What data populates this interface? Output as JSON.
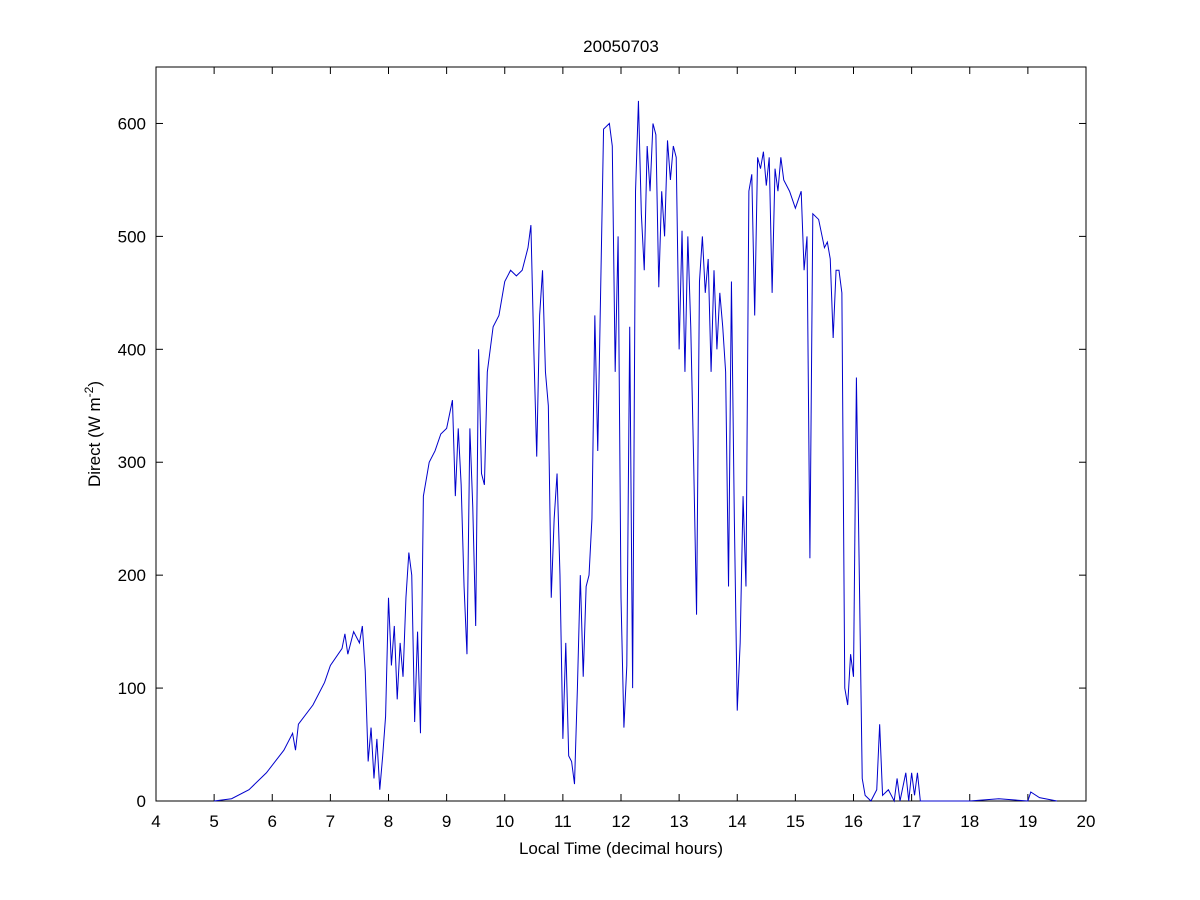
{
  "chart_data": {
    "type": "line",
    "title": "20050703",
    "xlabel": "Local Time (decimal hours)",
    "ylabel": {
      "text": "Direct (W m",
      "superscript": "-2",
      "suffix": ")"
    },
    "xlim": [
      4,
      20
    ],
    "xticks": [
      4,
      5,
      6,
      7,
      8,
      9,
      10,
      11,
      12,
      13,
      14,
      15,
      16,
      17,
      18,
      19,
      20
    ],
    "ylim": [
      0,
      650
    ],
    "yticks": [
      0,
      100,
      200,
      300,
      400,
      500,
      600
    ],
    "grid": false,
    "series": [
      {
        "color": "#0000cc",
        "x": [
          5.0,
          5.3,
          5.6,
          5.9,
          6.2,
          6.35,
          6.4,
          6.45,
          6.7,
          6.9,
          7.0,
          7.2,
          7.25,
          7.3,
          7.4,
          7.5,
          7.55,
          7.6,
          7.65,
          7.7,
          7.75,
          7.8,
          7.85,
          7.9,
          7.95,
          8.0,
          8.05,
          8.1,
          8.15,
          8.2,
          8.25,
          8.3,
          8.35,
          8.4,
          8.45,
          8.5,
          8.55,
          8.6,
          8.7,
          8.8,
          8.9,
          9.0,
          9.1,
          9.15,
          9.2,
          9.25,
          9.3,
          9.35,
          9.4,
          9.45,
          9.5,
          9.55,
          9.6,
          9.65,
          9.7,
          9.8,
          9.9,
          10.0,
          10.1,
          10.2,
          10.3,
          10.4,
          10.45,
          10.5,
          10.55,
          10.6,
          10.65,
          10.7,
          10.75,
          10.8,
          10.85,
          10.9,
          10.95,
          11.0,
          11.05,
          11.1,
          11.15,
          11.2,
          11.25,
          11.3,
          11.35,
          11.4,
          11.45,
          11.5,
          11.55,
          11.6,
          11.7,
          11.8,
          11.85,
          11.9,
          11.95,
          12.0,
          12.05,
          12.1,
          12.15,
          12.2,
          12.25,
          12.3,
          12.35,
          12.4,
          12.45,
          12.5,
          12.55,
          12.6,
          12.65,
          12.7,
          12.75,
          12.8,
          12.85,
          12.9,
          12.95,
          13.0,
          13.05,
          13.1,
          13.15,
          13.2,
          13.25,
          13.3,
          13.35,
          13.4,
          13.45,
          13.5,
          13.55,
          13.6,
          13.65,
          13.7,
          13.75,
          13.8,
          13.85,
          13.9,
          13.95,
          14.0,
          14.05,
          14.1,
          14.15,
          14.2,
          14.25,
          14.3,
          14.35,
          14.4,
          14.45,
          14.5,
          14.55,
          14.6,
          14.65,
          14.7,
          14.75,
          14.8,
          14.9,
          15.0,
          15.1,
          15.15,
          15.2,
          15.25,
          15.3,
          15.4,
          15.5,
          15.55,
          15.6,
          15.65,
          15.7,
          15.75,
          15.8,
          15.85,
          15.9,
          15.95,
          16.0,
          16.05,
          16.1,
          16.15,
          16.2,
          16.3,
          16.4,
          16.45,
          16.5,
          16.6,
          16.7,
          16.75,
          16.8,
          16.9,
          16.95,
          17.0,
          17.05,
          17.1,
          17.15,
          18.0,
          18.5,
          19.0,
          19.05,
          19.2,
          19.5
        ],
        "values": [
          0,
          2,
          10,
          25,
          45,
          60,
          45,
          68,
          85,
          105,
          120,
          135,
          148,
          130,
          150,
          140,
          155,
          115,
          35,
          65,
          20,
          55,
          10,
          40,
          75,
          180,
          120,
          155,
          90,
          140,
          110,
          180,
          220,
          200,
          70,
          150,
          60,
          270,
          300,
          310,
          325,
          330,
          355,
          270,
          330,
          280,
          190,
          130,
          330,
          260,
          155,
          400,
          290,
          280,
          380,
          420,
          430,
          460,
          470,
          465,
          470,
          490,
          510,
          400,
          305,
          430,
          470,
          380,
          350,
          180,
          250,
          290,
          200,
          55,
          140,
          40,
          35,
          15,
          100,
          200,
          110,
          190,
          200,
          250,
          430,
          310,
          595,
          600,
          580,
          380,
          500,
          180,
          65,
          120,
          420,
          100,
          540,
          620,
          520,
          470,
          580,
          540,
          600,
          590,
          455,
          540,
          500,
          585,
          550,
          580,
          570,
          400,
          505,
          380,
          500,
          420,
          300,
          165,
          460,
          500,
          450,
          480,
          380,
          470,
          400,
          450,
          420,
          380,
          190,
          460,
          250,
          80,
          140,
          270,
          190,
          540,
          555,
          430,
          570,
          560,
          575,
          545,
          570,
          450,
          560,
          540,
          570,
          550,
          540,
          525,
          540,
          470,
          500,
          215,
          520,
          515,
          490,
          495,
          480,
          410,
          470,
          470,
          450,
          100,
          85,
          130,
          110,
          375,
          200,
          20,
          5,
          0,
          10,
          68,
          5,
          10,
          0,
          20,
          0,
          25,
          0,
          25,
          5,
          25,
          0,
          0,
          2,
          0,
          8,
          3,
          0
        ]
      }
    ]
  }
}
